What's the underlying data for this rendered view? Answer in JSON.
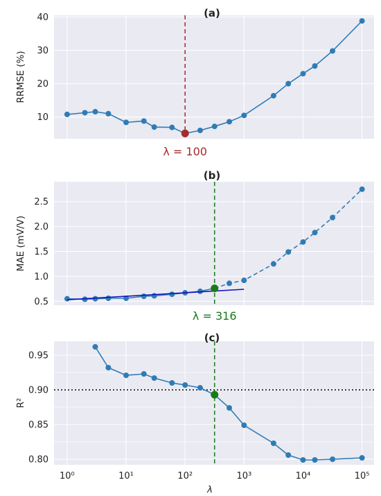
{
  "chart_data": [
    {
      "type": "line",
      "title": "(a)",
      "xlabel": "",
      "ylabel": "RRMSE (%)",
      "xscale": "log",
      "xlim": [
        0.6,
        160000
      ],
      "ylim": [
        3.5,
        40.5
      ],
      "yticks": [
        10,
        20,
        30,
        40
      ],
      "ytick_labels": [
        "10",
        "20",
        "30",
        "40"
      ],
      "grid": true,
      "series": [
        {
          "color": "#2f7cb5",
          "style": "solid",
          "x": [
            1,
            2,
            3,
            5,
            10,
            20,
            30,
            60,
            100,
            180,
            316,
            562,
            1000,
            3162,
            5623,
            10000,
            15849,
            31623,
            100000
          ],
          "y": [
            10.8,
            11.3,
            11.6,
            11.0,
            8.4,
            8.8,
            7.0,
            6.9,
            5.1,
            6.0,
            7.2,
            8.6,
            10.5,
            16.4,
            20.0,
            23.0,
            25.3,
            29.8,
            38.8
          ]
        }
      ],
      "highlight": {
        "x": 100,
        "y": 5.1,
        "color": "#a52a2a"
      },
      "vline": {
        "x": 100,
        "color": "#a52a2a",
        "style": "dashed"
      },
      "annotation": {
        "text": "λ = 100",
        "color": "#a52a2a"
      }
    },
    {
      "type": "line",
      "title": "(b)",
      "xlabel": "",
      "ylabel": "MAE (mV/V)",
      "xscale": "log",
      "xlim": [
        0.6,
        160000
      ],
      "ylim": [
        0.42,
        2.9
      ],
      "yticks": [
        0.5,
        1.0,
        1.5,
        2.0,
        2.5
      ],
      "ytick_labels": [
        "0.5",
        "1.0",
        "1.5",
        "2.0",
        "2.5"
      ],
      "grid": true,
      "series": [
        {
          "color": "#2f7cb5",
          "style": "solid",
          "x": [
            1,
            2,
            3,
            5,
            10,
            20,
            30,
            60,
            100,
            180,
            316
          ],
          "y": [
            0.55,
            0.54,
            0.55,
            0.56,
            0.56,
            0.6,
            0.61,
            0.64,
            0.67,
            0.7,
            0.76
          ]
        },
        {
          "color": "#2f7cb5",
          "style": "dashed",
          "x": [
            316,
            562,
            1000,
            3162,
            5623,
            10000,
            15849,
            31623,
            100000
          ],
          "y": [
            0.76,
            0.86,
            0.92,
            1.25,
            1.49,
            1.69,
            1.88,
            2.18,
            2.75
          ]
        },
        {
          "color": "#1010c0",
          "style": "solid",
          "marker": false,
          "x": [
            1,
            1000
          ],
          "y": [
            0.53,
            0.74
          ]
        }
      ],
      "highlight": {
        "x": 316,
        "y": 0.76,
        "color": "#1a7a1a"
      },
      "vline": {
        "x": 316,
        "color": "#1a7a1a",
        "style": "dashed"
      },
      "annotation": {
        "text": "λ = 316",
        "color": "#1a7a1a"
      }
    },
    {
      "type": "line",
      "title": "(c)",
      "xlabel": "λ",
      "ylabel": "R²",
      "xscale": "log",
      "xlim": [
        0.6,
        160000
      ],
      "ylim": [
        0.792,
        0.97
      ],
      "yticks": [
        0.8,
        0.85,
        0.9,
        0.95
      ],
      "ytick_labels": [
        "0.80",
        "0.85",
        "0.90",
        "0.95"
      ],
      "xticks": [
        1,
        10,
        100,
        1000,
        10000,
        100000
      ],
      "xtick_labels": [
        "10⁰",
        "10¹",
        "10²",
        "10³",
        "10⁴",
        "10⁵"
      ],
      "grid": true,
      "series": [
        {
          "color": "#2f7cb5",
          "style": "solid",
          "x": [
            3,
            5,
            10,
            20,
            30,
            60,
            100,
            180,
            316,
            562,
            1000,
            3162,
            5623,
            10000,
            15849,
            31623,
            100000
          ],
          "y": [
            0.962,
            0.932,
            0.921,
            0.923,
            0.917,
            0.91,
            0.907,
            0.903,
            0.893,
            0.874,
            0.849,
            0.823,
            0.806,
            0.799,
            0.799,
            0.8,
            0.802
          ]
        }
      ],
      "highlight": {
        "x": 316,
        "y": 0.893,
        "color": "#1a7a1a"
      },
      "vline": {
        "x": 316,
        "color": "#1a7a1a",
        "style": "dashed"
      },
      "hline": {
        "y": 0.9,
        "color": "#000000",
        "style": "dotted"
      }
    }
  ]
}
